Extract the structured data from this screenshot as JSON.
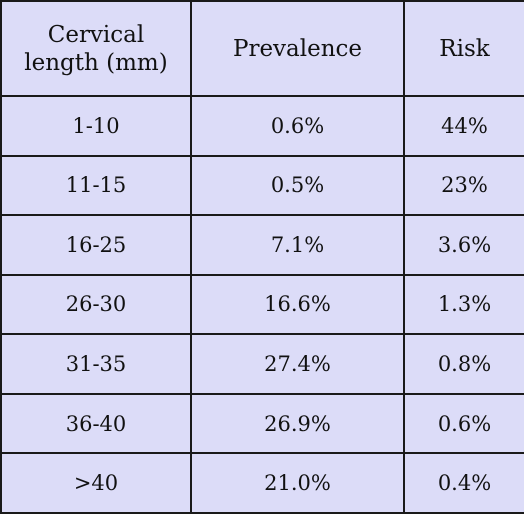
{
  "table": {
    "headers": [
      "Cervical\nlength (mm)",
      "Prevalence",
      "Risk"
    ],
    "header_line1": "Cervical",
    "header_line2": "length (mm)",
    "rows": [
      [
        "1-10",
        "0.6%",
        "44%"
      ],
      [
        "11-15",
        "0.5%",
        "23%"
      ],
      [
        "16-25",
        "7.1%",
        "3.6%"
      ],
      [
        "26-30",
        "16.6%",
        "1.3%"
      ],
      [
        "31-35",
        "27.4%",
        "0.8%"
      ],
      [
        "36-40",
        "26.9%",
        "0.6%"
      ],
      [
        ">40",
        "21.0%",
        "0.4%"
      ]
    ]
  },
  "colors": {
    "cell_background": "#dcdcf8",
    "border": "#1a1a1a",
    "text": "#111111"
  }
}
